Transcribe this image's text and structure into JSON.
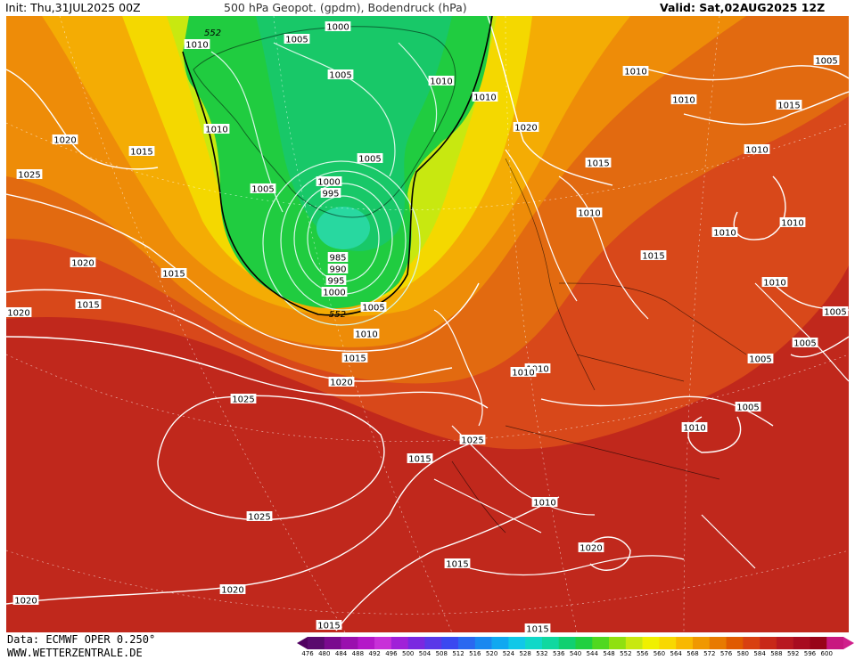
{
  "header": {
    "init": "Init: Thu,31JUL2025 00Z",
    "title": "500 hPa Geopot. (gpdm), Bodendruck (hPa)",
    "valid": "Valid: Sat,02AUG2025 12Z"
  },
  "footer": {
    "data_source": "Data: ECMWF OPER 0.250°",
    "website": "WWW.WETTERZENTRALE.DE"
  },
  "colorbar": {
    "labels": [
      "476",
      "480",
      "484",
      "488",
      "492",
      "496",
      "500",
      "504",
      "508",
      "512",
      "516",
      "520",
      "524",
      "528",
      "532",
      "536",
      "540",
      "544",
      "548",
      "552",
      "556",
      "560",
      "564",
      "568",
      "572",
      "576",
      "580",
      "584",
      "588",
      "592",
      "596",
      "600"
    ],
    "colors": [
      "#5a0a6e",
      "#7a0a8e",
      "#9a10ae",
      "#b418c8",
      "#c830d8",
      "#a020d8",
      "#7a28e0",
      "#5a38e8",
      "#3a48f0",
      "#2a68f0",
      "#1a88f0",
      "#10a8f0",
      "#10c8e8",
      "#10d8c8",
      "#10d8a0",
      "#10d070",
      "#20d040",
      "#50d820",
      "#90e010",
      "#c8e810",
      "#f0f000",
      "#f8d800",
      "#f8b800",
      "#f09800",
      "#e87a00",
      "#e05a00",
      "#d84010",
      "#c82818",
      "#b81820",
      "#a80c20",
      "#980418",
      "#c81880"
    ]
  },
  "isobar_labels": [
    "1000",
    "1005",
    "1010",
    "1005",
    "1010",
    "1010",
    "1010",
    "1005",
    "1005",
    "1000",
    "995",
    "985",
    "990",
    "995",
    "1000",
    "1005",
    "1010",
    "1015",
    "1020",
    "1020",
    "1015",
    "1025",
    "1020",
    "1015",
    "1020",
    "1015",
    "1025",
    "1025",
    "1020",
    "1020",
    "1015",
    "1015",
    "1010",
    "1025",
    "1020",
    "1015",
    "1010",
    "1010",
    "1015",
    "1010",
    "1010",
    "1005",
    "1005",
    "1005",
    "1005",
    "1010",
    "1010",
    "1010",
    "1015",
    "1010",
    "1010",
    "1015",
    "1020",
    "1015",
    "1010",
    "1005"
  ],
  "contour_labels": [
    "552",
    "552"
  ]
}
